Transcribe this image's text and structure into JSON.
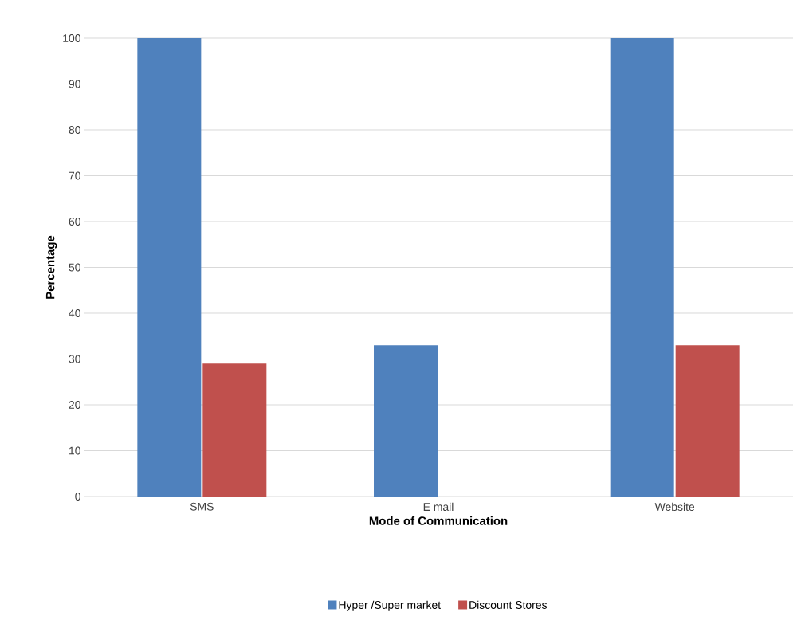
{
  "chart_data": {
    "type": "bar",
    "xlabel": "Mode of Communication",
    "ylabel": "Percentage",
    "categories": [
      "SMS",
      "E mail",
      "Website"
    ],
    "series": [
      {
        "name": "Hyper  /Super market",
        "color": "#4f81bd",
        "values": [
          100,
          33,
          100
        ]
      },
      {
        "name": "Discount Stores",
        "color": "#c0504d",
        "values": [
          29,
          0,
          33
        ]
      }
    ],
    "ylim": [
      0,
      100
    ],
    "yticks": [
      0,
      10,
      20,
      30,
      40,
      50,
      60,
      70,
      80,
      90,
      100
    ],
    "grid": "y",
    "legend": "bottom"
  }
}
